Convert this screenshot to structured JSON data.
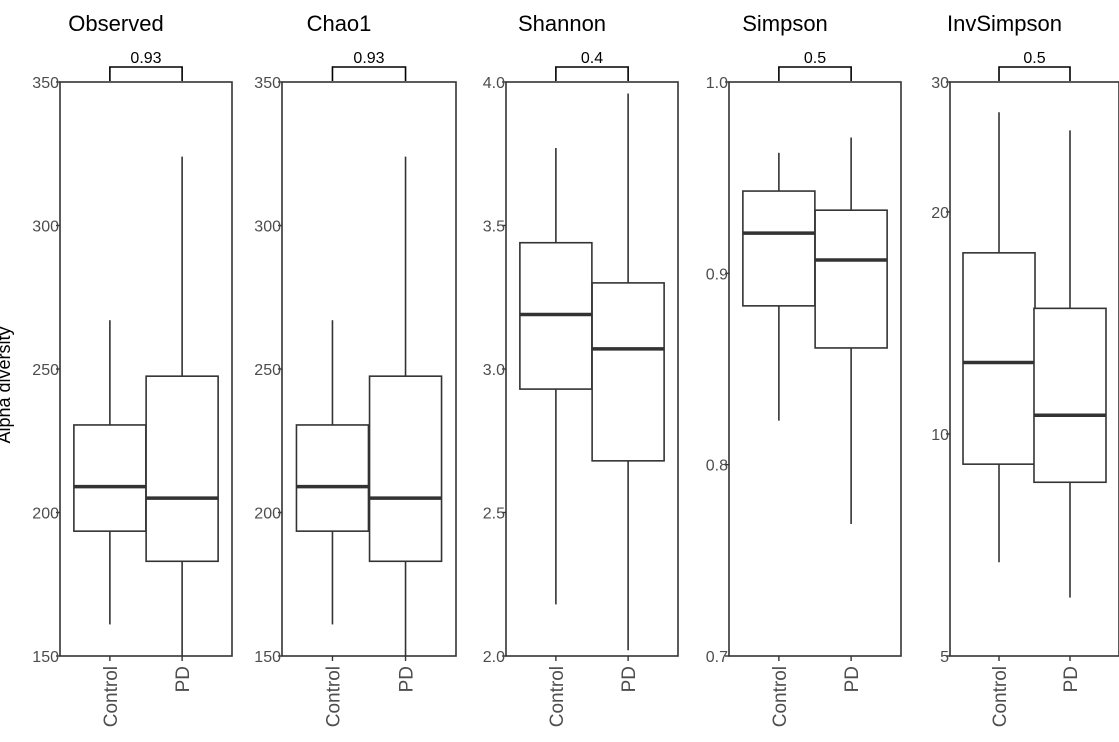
{
  "y_axis_title": "Alpha diversity",
  "chart_data": [
    {
      "type": "box",
      "title": "Observed",
      "categories": [
        "Control",
        "PD"
      ],
      "ylim": [
        150,
        350
      ],
      "y_scale": "linear",
      "yticks": [
        150,
        200,
        250,
        300,
        350
      ],
      "ytick_labels": [
        "150",
        "200",
        "250",
        "300",
        "350"
      ],
      "boxes": [
        {
          "group": "Control",
          "whisker_low": 161,
          "q1": 193.5,
          "median": 209,
          "q3": 230.5,
          "whisker_high": 267
        },
        {
          "group": "PD",
          "whisker_low": 150,
          "q1": 183,
          "median": 205,
          "q3": 247.5,
          "whisker_high": 324
        }
      ],
      "comparison": {
        "p_value": "0.93"
      }
    },
    {
      "type": "box",
      "title": "Chao1",
      "categories": [
        "Control",
        "PD"
      ],
      "ylim": [
        150,
        350
      ],
      "y_scale": "linear",
      "yticks": [
        150,
        200,
        250,
        300,
        350
      ],
      "ytick_labels": [
        "150",
        "200",
        "250",
        "300",
        "350"
      ],
      "boxes": [
        {
          "group": "Control",
          "whisker_low": 161,
          "q1": 193.5,
          "median": 209,
          "q3": 230.5,
          "whisker_high": 267
        },
        {
          "group": "PD",
          "whisker_low": 150,
          "q1": 183,
          "median": 205,
          "q3": 247.5,
          "whisker_high": 324
        }
      ],
      "comparison": {
        "p_value": "0.93"
      }
    },
    {
      "type": "box",
      "title": "Shannon",
      "categories": [
        "Control",
        "PD"
      ],
      "ylim": [
        2.0,
        4.0
      ],
      "y_scale": "linear",
      "yticks": [
        2.0,
        2.5,
        3.0,
        3.5,
        4.0
      ],
      "ytick_labels": [
        "2.0",
        "2.5",
        "3.0",
        "3.5",
        "4.0"
      ],
      "boxes": [
        {
          "group": "Control",
          "whisker_low": 2.18,
          "q1": 2.93,
          "median": 3.19,
          "q3": 3.44,
          "whisker_high": 3.77
        },
        {
          "group": "PD",
          "whisker_low": 2.02,
          "q1": 2.68,
          "median": 3.07,
          "q3": 3.3,
          "whisker_high": 3.96
        }
      ],
      "comparison": {
        "p_value": "0.4"
      }
    },
    {
      "type": "box",
      "title": "Simpson",
      "categories": [
        "Control",
        "PD"
      ],
      "ylim": [
        0.7,
        1.0
      ],
      "y_scale": "linear",
      "yticks": [
        0.7,
        0.8,
        0.9,
        1.0
      ],
      "ytick_labels": [
        "0.7",
        "0.8",
        "0.9",
        "1.0"
      ],
      "boxes": [
        {
          "group": "Control",
          "whisker_low": 0.823,
          "q1": 0.883,
          "median": 0.921,
          "q3": 0.943,
          "whisker_high": 0.963
        },
        {
          "group": "PD",
          "whisker_low": 0.769,
          "q1": 0.861,
          "median": 0.907,
          "q3": 0.933,
          "whisker_high": 0.971
        }
      ],
      "comparison": {
        "p_value": "0.5"
      }
    },
    {
      "type": "box",
      "title": "InvSimpson",
      "categories": [
        "Control",
        "PD"
      ],
      "ylim": [
        5,
        30
      ],
      "y_scale": "log",
      "yticks": [
        5,
        10,
        20,
        30
      ],
      "ytick_labels": [
        "5",
        "10",
        "20",
        "30"
      ],
      "boxes": [
        {
          "group": "Control",
          "whisker_low": 6.7,
          "q1": 9.1,
          "median": 12.5,
          "q3": 17.6,
          "whisker_high": 27.3
        },
        {
          "group": "PD",
          "whisker_low": 6.0,
          "q1": 8.6,
          "median": 10.6,
          "q3": 14.8,
          "whisker_high": 25.8
        }
      ],
      "comparison": {
        "p_value": "0.5"
      }
    }
  ]
}
